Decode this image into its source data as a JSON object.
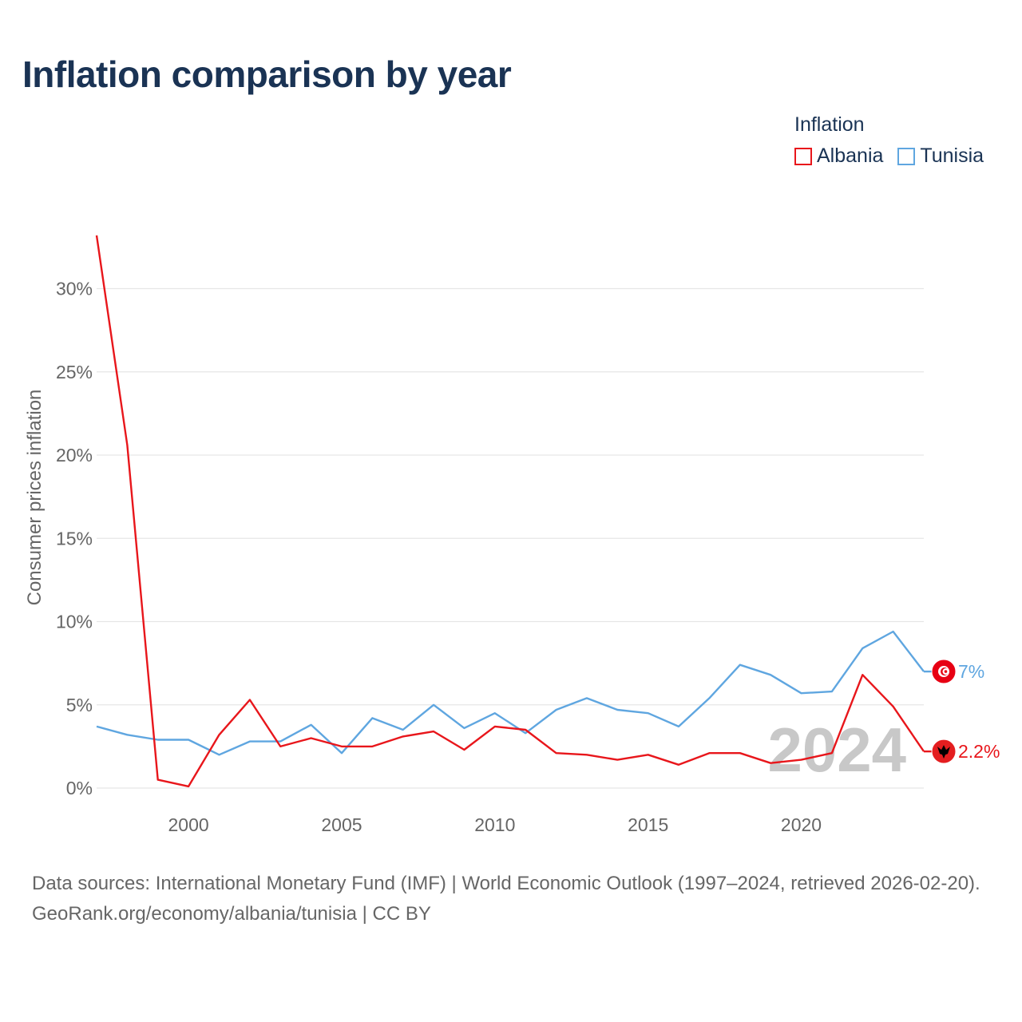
{
  "title": "Inflation comparison by year",
  "legend": {
    "title": "Inflation",
    "items": [
      {
        "label": "Albania",
        "color": "#e8161b"
      },
      {
        "label": "Tunisia",
        "color": "#5fa6e0"
      }
    ]
  },
  "footer": {
    "sources": "Data sources: International Monetary Fund (IMF) | World Economic Outlook (1997–2024, retrieved 2026-02-20).",
    "credit": "GeoRank.org/economy/albania/tunisia | CC BY"
  },
  "chart_data": {
    "type": "line",
    "title": "Inflation comparison by year",
    "xlabel": "",
    "ylabel": "Consumer prices inflation",
    "xlim": [
      1997,
      2024
    ],
    "ylim": [
      0,
      30
    ],
    "grid": true,
    "legend_position": "top-right",
    "x": [
      1997,
      1998,
      1999,
      2000,
      2001,
      2002,
      2003,
      2004,
      2005,
      2006,
      2007,
      2008,
      2009,
      2010,
      2011,
      2012,
      2013,
      2014,
      2015,
      2016,
      2017,
      2018,
      2019,
      2020,
      2021,
      2022,
      2023,
      2024
    ],
    "x_ticks": [
      {
        "value": 2000,
        "label": "2000"
      },
      {
        "value": 2005,
        "label": "2005"
      },
      {
        "value": 2010,
        "label": "2010"
      },
      {
        "value": 2015,
        "label": "2015"
      },
      {
        "value": 2020,
        "label": "2020"
      }
    ],
    "y_ticks": [
      {
        "value": 0,
        "label": "0%"
      },
      {
        "value": 5,
        "label": "5%"
      },
      {
        "value": 10,
        "label": "10%"
      },
      {
        "value": 15,
        "label": "15%"
      },
      {
        "value": 20,
        "label": "20%"
      },
      {
        "value": 25,
        "label": "25%"
      },
      {
        "value": 30,
        "label": "30%"
      }
    ],
    "series": [
      {
        "name": "Tunisia",
        "color": "#5fa6e0",
        "values": [
          3.7,
          3.2,
          2.9,
          2.9,
          2.0,
          2.8,
          2.8,
          3.8,
          2.1,
          4.2,
          3.5,
          5.0,
          3.6,
          4.5,
          3.3,
          4.7,
          5.4,
          4.7,
          4.5,
          3.7,
          5.4,
          7.4,
          6.8,
          5.7,
          5.8,
          8.4,
          9.4,
          7.0
        ],
        "end_label": "7%"
      },
      {
        "name": "Albania",
        "color": "#e8161b",
        "values": [
          33.2,
          20.6,
          0.5,
          0.1,
          3.2,
          5.3,
          2.5,
          3.0,
          2.5,
          2.5,
          3.1,
          3.4,
          2.3,
          3.7,
          3.5,
          2.1,
          2.0,
          1.7,
          2.0,
          1.4,
          2.1,
          2.1,
          1.5,
          1.7,
          2.1,
          6.8,
          4.9,
          2.2
        ],
        "end_label": "2.2%"
      }
    ],
    "year_watermark": "2024"
  }
}
